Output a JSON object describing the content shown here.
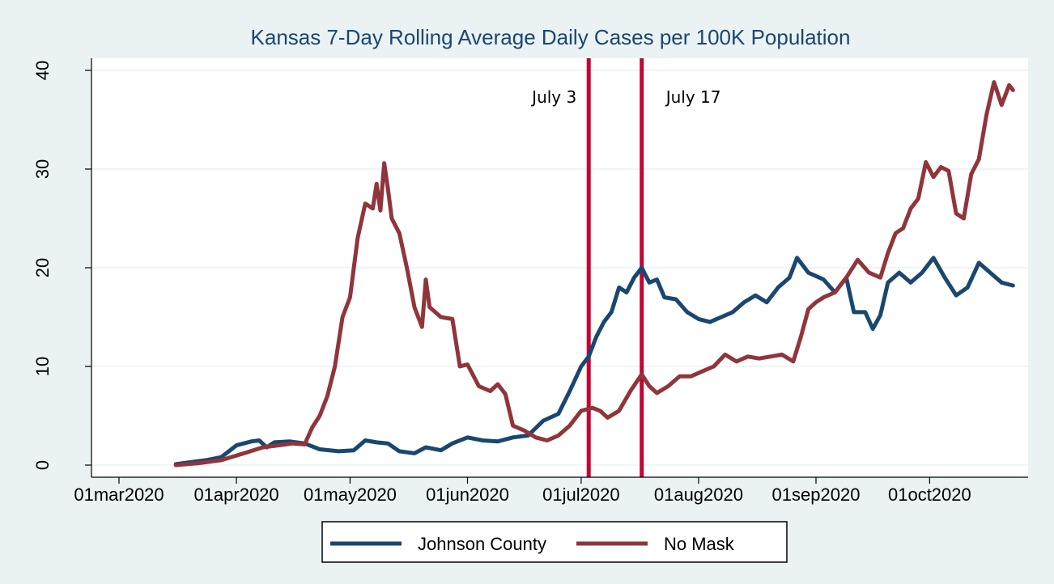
{
  "chart_data": {
    "type": "line",
    "title": "Kansas 7-Day Rolling Average Daily Cases per 100K Population",
    "xlabel": "",
    "ylabel": "",
    "xlim": [
      "2020-03-01",
      "2020-10-24"
    ],
    "ylim": [
      0,
      40
    ],
    "x_ticks": [
      "01mar2020",
      "01apr2020",
      "01may2020",
      "01jun2020",
      "01jul2020",
      "01aug2020",
      "01sep2020",
      "01oct2020"
    ],
    "x_tick_dates": [
      "2020-03-01",
      "2020-04-01",
      "2020-05-01",
      "2020-06-01",
      "2020-07-01",
      "2020-08-01",
      "2020-09-01",
      "2020-10-01"
    ],
    "y_ticks": [
      0,
      10,
      20,
      30,
      40
    ],
    "grid": "horizontal",
    "legend_position": "bottom",
    "colors": {
      "background": "#eaf2f3",
      "plot_background": "#ffffff",
      "title": "#1a476f",
      "grid": "#eaf2f3"
    },
    "annotations": [
      {
        "label": "July 3",
        "date": "2020-07-03",
        "color": "#c10534"
      },
      {
        "label": "July 17",
        "date": "2020-07-17",
        "color": "#c10534"
      }
    ],
    "series": [
      {
        "name": "Johnson County",
        "color": "#1a476f",
        "points": [
          [
            "2020-03-16",
            0.1
          ],
          [
            "2020-03-20",
            0.3
          ],
          [
            "2020-03-24",
            0.5
          ],
          [
            "2020-03-28",
            0.8
          ],
          [
            "2020-04-01",
            2.0
          ],
          [
            "2020-04-05",
            2.4
          ],
          [
            "2020-04-07",
            2.5
          ],
          [
            "2020-04-09",
            1.8
          ],
          [
            "2020-04-11",
            2.3
          ],
          [
            "2020-04-15",
            2.4
          ],
          [
            "2020-04-19",
            2.2
          ],
          [
            "2020-04-23",
            1.6
          ],
          [
            "2020-04-28",
            1.4
          ],
          [
            "2020-05-02",
            1.5
          ],
          [
            "2020-05-05",
            2.5
          ],
          [
            "2020-05-08",
            2.3
          ],
          [
            "2020-05-11",
            2.2
          ],
          [
            "2020-05-14",
            1.4
          ],
          [
            "2020-05-18",
            1.2
          ],
          [
            "2020-05-21",
            1.8
          ],
          [
            "2020-05-25",
            1.5
          ],
          [
            "2020-05-28",
            2.2
          ],
          [
            "2020-06-01",
            2.8
          ],
          [
            "2020-06-05",
            2.5
          ],
          [
            "2020-06-09",
            2.4
          ],
          [
            "2020-06-13",
            2.8
          ],
          [
            "2020-06-17",
            3.0
          ],
          [
            "2020-06-21",
            4.5
          ],
          [
            "2020-06-25",
            5.2
          ],
          [
            "2020-06-28",
            7.5
          ],
          [
            "2020-07-01",
            10.0
          ],
          [
            "2020-07-03",
            11.0
          ],
          [
            "2020-07-05",
            13.0
          ],
          [
            "2020-07-07",
            14.5
          ],
          [
            "2020-07-09",
            15.5
          ],
          [
            "2020-07-11",
            18.0
          ],
          [
            "2020-07-13",
            17.5
          ],
          [
            "2020-07-15",
            19.0
          ],
          [
            "2020-07-17",
            20.0
          ],
          [
            "2020-07-19",
            18.5
          ],
          [
            "2020-07-21",
            18.8
          ],
          [
            "2020-07-23",
            17.0
          ],
          [
            "2020-07-26",
            16.8
          ],
          [
            "2020-07-29",
            15.5
          ],
          [
            "2020-08-01",
            14.8
          ],
          [
            "2020-08-04",
            14.5
          ],
          [
            "2020-08-07",
            15.0
          ],
          [
            "2020-08-10",
            15.5
          ],
          [
            "2020-08-13",
            16.5
          ],
          [
            "2020-08-16",
            17.2
          ],
          [
            "2020-08-19",
            16.5
          ],
          [
            "2020-08-22",
            18.0
          ],
          [
            "2020-08-25",
            19.0
          ],
          [
            "2020-08-27",
            21.0
          ],
          [
            "2020-08-30",
            19.5
          ],
          [
            "2020-09-03",
            18.8
          ],
          [
            "2020-09-06",
            17.5
          ],
          [
            "2020-09-09",
            19.0
          ],
          [
            "2020-09-11",
            15.5
          ],
          [
            "2020-09-14",
            15.5
          ],
          [
            "2020-09-16",
            13.8
          ],
          [
            "2020-09-18",
            15.2
          ],
          [
            "2020-09-20",
            18.5
          ],
          [
            "2020-09-23",
            19.5
          ],
          [
            "2020-09-26",
            18.5
          ],
          [
            "2020-09-29",
            19.5
          ],
          [
            "2020-10-02",
            21.0
          ],
          [
            "2020-10-05",
            19.0
          ],
          [
            "2020-10-08",
            17.2
          ],
          [
            "2020-10-11",
            18.0
          ],
          [
            "2020-10-14",
            20.5
          ],
          [
            "2020-10-17",
            19.5
          ],
          [
            "2020-10-20",
            18.5
          ],
          [
            "2020-10-23",
            18.2
          ]
        ]
      },
      {
        "name": "No Mask",
        "color": "#90353b",
        "points": [
          [
            "2020-03-16",
            0.0
          ],
          [
            "2020-03-22",
            0.2
          ],
          [
            "2020-03-28",
            0.5
          ],
          [
            "2020-04-03",
            1.2
          ],
          [
            "2020-04-08",
            1.8
          ],
          [
            "2020-04-12",
            2.0
          ],
          [
            "2020-04-16",
            2.2
          ],
          [
            "2020-04-19",
            2.1
          ],
          [
            "2020-04-21",
            3.8
          ],
          [
            "2020-04-23",
            5.0
          ],
          [
            "2020-04-25",
            7.0
          ],
          [
            "2020-04-27",
            10.0
          ],
          [
            "2020-04-29",
            15.0
          ],
          [
            "2020-05-01",
            17.0
          ],
          [
            "2020-05-02",
            20.0
          ],
          [
            "2020-05-03",
            23.0
          ],
          [
            "2020-05-05",
            26.5
          ],
          [
            "2020-05-07",
            26.0
          ],
          [
            "2020-05-08",
            28.5
          ],
          [
            "2020-05-09",
            25.8
          ],
          [
            "2020-05-10",
            30.6
          ],
          [
            "2020-05-11",
            28.0
          ],
          [
            "2020-05-12",
            25.0
          ],
          [
            "2020-05-14",
            23.5
          ],
          [
            "2020-05-16",
            20.0
          ],
          [
            "2020-05-18",
            16.0
          ],
          [
            "2020-05-20",
            14.0
          ],
          [
            "2020-05-21",
            18.8
          ],
          [
            "2020-05-22",
            16.0
          ],
          [
            "2020-05-25",
            15.0
          ],
          [
            "2020-05-28",
            14.8
          ],
          [
            "2020-05-30",
            10.0
          ],
          [
            "2020-06-01",
            10.2
          ],
          [
            "2020-06-04",
            8.0
          ],
          [
            "2020-06-07",
            7.5
          ],
          [
            "2020-06-09",
            8.2
          ],
          [
            "2020-06-11",
            7.2
          ],
          [
            "2020-06-13",
            4.0
          ],
          [
            "2020-06-16",
            3.5
          ],
          [
            "2020-06-19",
            2.8
          ],
          [
            "2020-06-22",
            2.5
          ],
          [
            "2020-06-25",
            3.0
          ],
          [
            "2020-06-28",
            4.0
          ],
          [
            "2020-07-01",
            5.5
          ],
          [
            "2020-07-04",
            5.8
          ],
          [
            "2020-07-06",
            5.5
          ],
          [
            "2020-07-08",
            4.8
          ],
          [
            "2020-07-11",
            5.5
          ],
          [
            "2020-07-14",
            7.5
          ],
          [
            "2020-07-17",
            9.2
          ],
          [
            "2020-07-19",
            8.0
          ],
          [
            "2020-07-21",
            7.3
          ],
          [
            "2020-07-24",
            8.0
          ],
          [
            "2020-07-27",
            9.0
          ],
          [
            "2020-07-30",
            9.0
          ],
          [
            "2020-08-02",
            9.5
          ],
          [
            "2020-08-05",
            10.0
          ],
          [
            "2020-08-08",
            11.2
          ],
          [
            "2020-08-11",
            10.5
          ],
          [
            "2020-08-14",
            11.0
          ],
          [
            "2020-08-17",
            10.8
          ],
          [
            "2020-08-20",
            11.0
          ],
          [
            "2020-08-23",
            11.2
          ],
          [
            "2020-08-26",
            10.5
          ],
          [
            "2020-08-28",
            13.0
          ],
          [
            "2020-08-30",
            15.8
          ],
          [
            "2020-09-01",
            16.5
          ],
          [
            "2020-09-03",
            17.0
          ],
          [
            "2020-09-06",
            17.5
          ],
          [
            "2020-09-09",
            19.0
          ],
          [
            "2020-09-12",
            20.8
          ],
          [
            "2020-09-15",
            19.5
          ],
          [
            "2020-09-18",
            19.0
          ],
          [
            "2020-09-20",
            21.5
          ],
          [
            "2020-09-22",
            23.5
          ],
          [
            "2020-09-24",
            24.0
          ],
          [
            "2020-09-26",
            26.0
          ],
          [
            "2020-09-28",
            27.0
          ],
          [
            "2020-09-30",
            30.7
          ],
          [
            "2020-10-02",
            29.2
          ],
          [
            "2020-10-04",
            30.2
          ],
          [
            "2020-10-06",
            29.8
          ],
          [
            "2020-10-08",
            25.5
          ],
          [
            "2020-10-10",
            25.0
          ],
          [
            "2020-10-12",
            29.5
          ],
          [
            "2020-10-14",
            31.0
          ],
          [
            "2020-10-16",
            35.5
          ],
          [
            "2020-10-18",
            38.8
          ],
          [
            "2020-10-20",
            36.5
          ],
          [
            "2020-10-22",
            38.5
          ],
          [
            "2020-10-23",
            38.0
          ]
        ]
      }
    ]
  }
}
